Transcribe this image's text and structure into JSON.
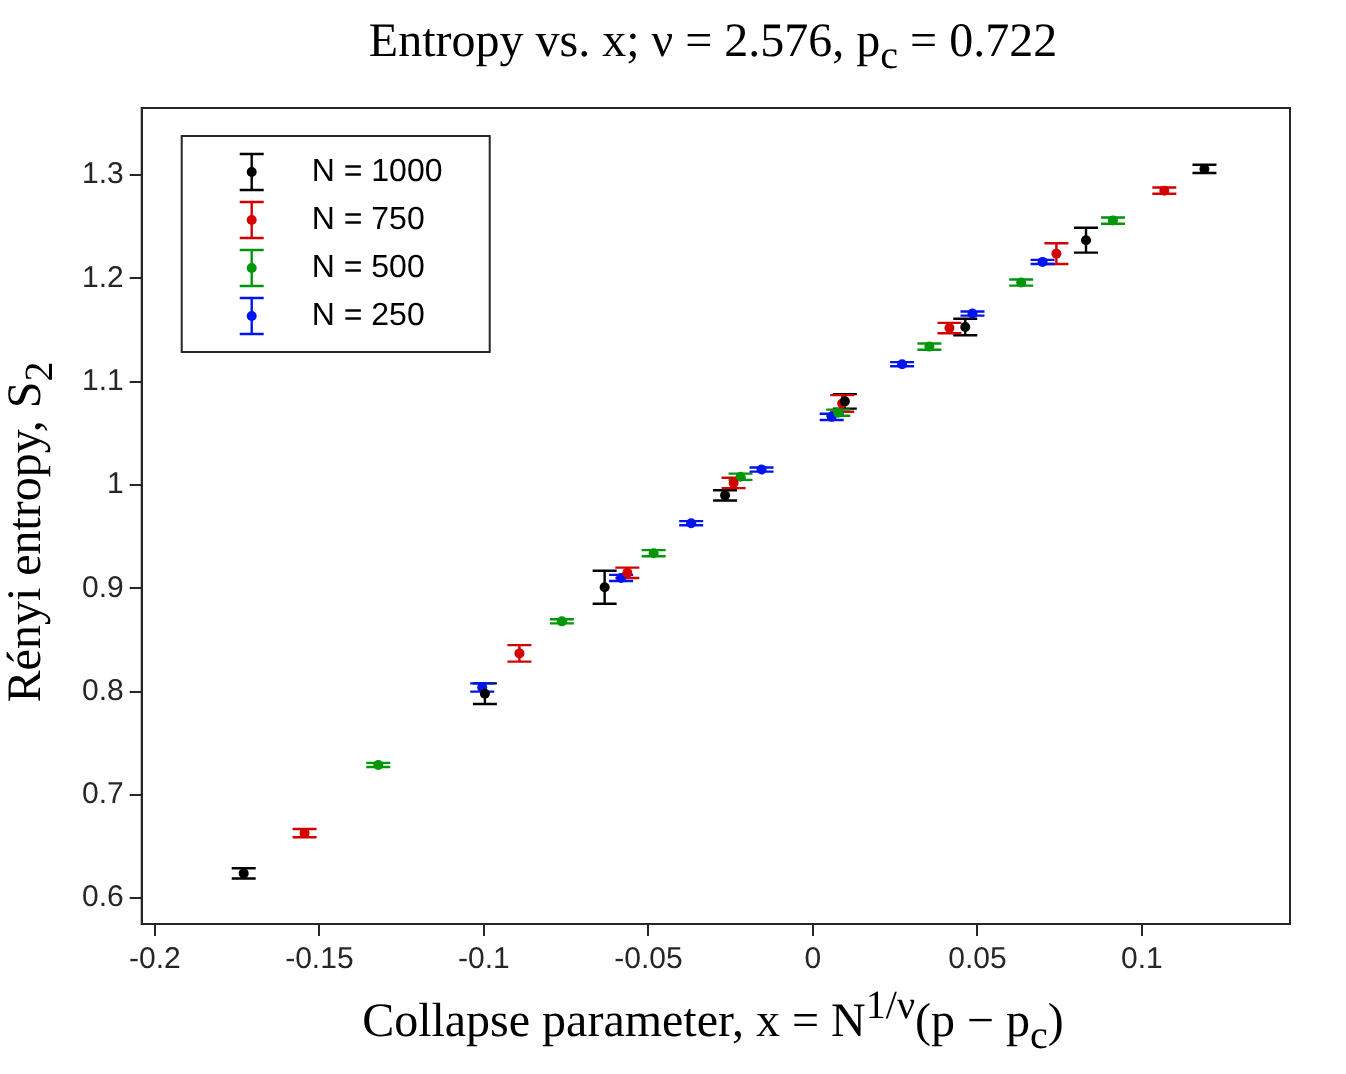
{
  "chart_data": {
    "type": "scatter",
    "title": "Entropy vs. x; ν = 2.576, p$_{c}$ = 0.722",
    "xlabel": "Collapse parameter, x = N$^{1/ν}$(p − p$_{c}$)",
    "ylabel": "Rényi entropy, S$_{2}$",
    "xlim": [
      -0.204,
      0.145
    ],
    "ylim": [
      0.575,
      1.365
    ],
    "xticks": [
      -0.2,
      -0.15,
      -0.1,
      -0.05,
      0,
      0.05,
      0.1
    ],
    "yticks": [
      0.6,
      0.7,
      0.8,
      0.9,
      1,
      1.1,
      1.2,
      1.3
    ],
    "grid": false,
    "legend": "top left",
    "marker": "circle",
    "series": [
      {
        "name": "N = 1000",
        "color": "#000000",
        "x": [
          -0.173,
          -0.0997,
          -0.0633,
          -0.0267,
          0.0097,
          0.0463,
          0.083,
          0.119
        ],
        "values": [
          0.624,
          0.798,
          0.901,
          0.99,
          1.081,
          1.153,
          1.237,
          1.306
        ],
        "errors": [
          0.005,
          0.01,
          0.016,
          0.005,
          0.007,
          0.008,
          0.012,
          0.004
        ]
      },
      {
        "name": "N = 750",
        "color": "#d40000",
        "x": [
          -0.1545,
          -0.0892,
          -0.0564,
          -0.0241,
          0.0089,
          0.0415,
          0.074,
          0.1068
        ],
        "values": [
          0.663,
          0.837,
          0.915,
          1.002,
          1.079,
          1.152,
          1.224,
          1.285
        ],
        "errors": [
          0.004,
          0.008,
          0.005,
          0.005,
          0.008,
          0.005,
          0.01,
          0.003
        ]
      },
      {
        "name": "N = 500",
        "color": "#00960a",
        "x": [
          -0.1321,
          -0.0763,
          -0.0484,
          -0.022,
          0.0077,
          0.0354,
          0.0633,
          0.0912
        ],
        "values": [
          0.729,
          0.868,
          0.934,
          1.008,
          1.07,
          1.134,
          1.196,
          1.256
        ],
        "errors": [
          0.002,
          0.002,
          0.003,
          0.003,
          0.003,
          0.003,
          0.003,
          0.003
        ]
      },
      {
        "name": "N = 250",
        "color": "#0014f0",
        "x": [
          -0.1005,
          -0.0583,
          -0.037,
          -0.0156,
          0.0057,
          0.0271,
          0.0485,
          0.0698
        ],
        "values": [
          0.804,
          0.91,
          0.963,
          1.015,
          1.066,
          1.117,
          1.166,
          1.216
        ],
        "errors": [
          0.004,
          0.003,
          0.002,
          0.002,
          0.003,
          0.002,
          0.002,
          0.002
        ]
      }
    ]
  }
}
